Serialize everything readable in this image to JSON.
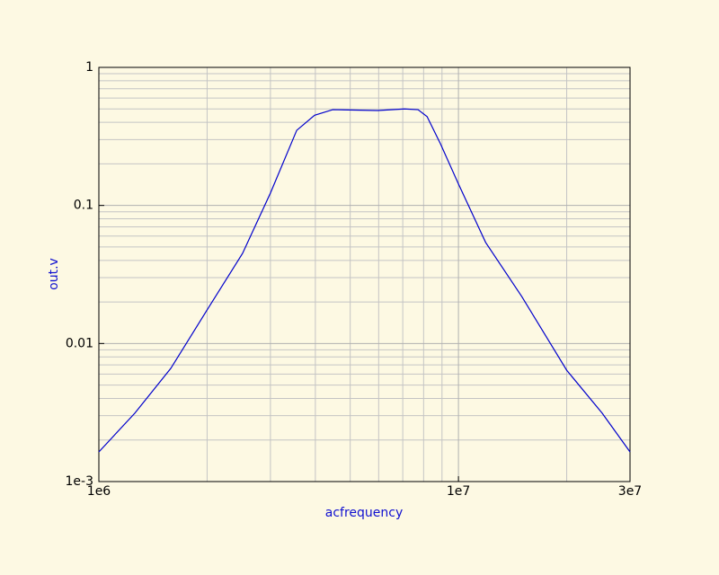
{
  "chart_data": {
    "type": "line",
    "x_label": "acfrequency",
    "y_label": "out.v",
    "x": [
      1000000,
      1259000,
      1585000,
      2000000,
      2510000,
      3000000,
      3550000,
      3980000,
      4470000,
      5960000,
      7080000,
      7720000,
      8180000,
      8910000,
      10000000,
      11900000,
      15000000,
      20000000,
      25100000,
      30000000
    ],
    "values": [
      0.00164,
      0.00313,
      0.0066,
      0.0175,
      0.045,
      0.123,
      0.35,
      0.45,
      0.494,
      0.487,
      0.5,
      0.494,
      0.44,
      0.28,
      0.143,
      0.054,
      0.0219,
      0.0064,
      0.00313,
      0.00164
    ],
    "color": "#0000cc",
    "xlim": [
      1000000,
      30000000
    ],
    "ylim": [
      0.001,
      1
    ],
    "xticks": [
      {
        "value": 1000000,
        "label": "1e6"
      },
      {
        "value": 10000000,
        "label": "1e7"
      },
      {
        "value": 30000000,
        "label": "3e7"
      }
    ],
    "yticks": [
      {
        "value": 0.001,
        "label": "1e-3"
      },
      0.01,
      0.1,
      1
    ],
    "xscale": "log",
    "yscale": "log",
    "grid": true,
    "minor_grid": true
  }
}
